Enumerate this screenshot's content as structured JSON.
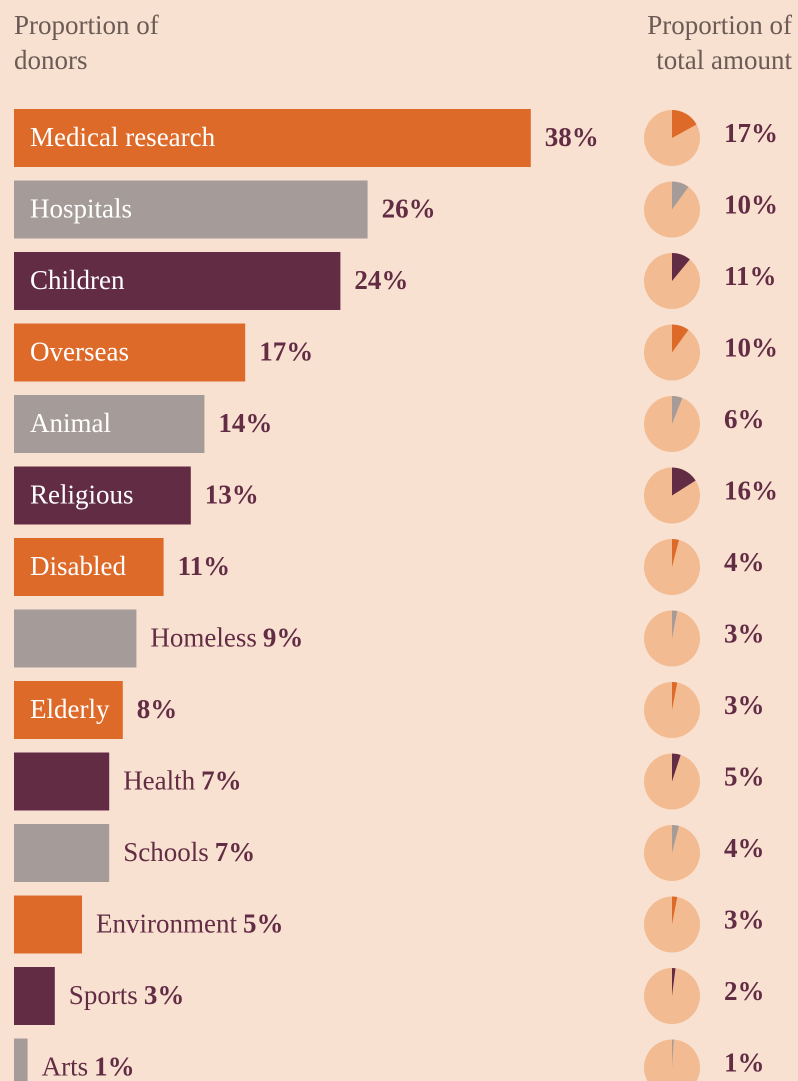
{
  "chart_data": {
    "type": "bar",
    "categories": [
      "Medical research",
      "Hospitals",
      "Children",
      "Overseas",
      "Animal",
      "Religious",
      "Disabled",
      "Homeless",
      "Elderly",
      "Health",
      "Schools",
      "Environment",
      "Sports",
      "Arts"
    ],
    "colors": [
      "#de6a29",
      "#a59c99",
      "#632c45",
      "#de6a29",
      "#a59c99",
      "#632c45",
      "#de6a29",
      "#a59c99",
      "#de6a29",
      "#632c45",
      "#a59c99",
      "#de6a29",
      "#632c45",
      "#a59c99"
    ],
    "series": [
      {
        "name": "Proportion of donors",
        "type": "bar",
        "values": [
          38,
          26,
          24,
          17,
          14,
          13,
          11,
          9,
          8,
          7,
          7,
          5,
          3,
          1
        ],
        "value_labels": [
          "38%",
          "26%",
          "24%",
          "17%",
          "14%",
          "13%",
          "11%",
          "9%",
          "8%",
          "7%",
          "7%",
          "5%",
          "3%",
          "1%"
        ]
      },
      {
        "name": "Proportion of total amount",
        "type": "pie",
        "values": [
          17,
          10,
          11,
          10,
          6,
          16,
          4,
          3,
          3,
          5,
          4,
          3,
          2,
          1
        ],
        "value_labels": [
          "17%",
          "10%",
          "11%",
          "10%",
          "6%",
          "16%",
          "4%",
          "3%",
          "3%",
          "5%",
          "4%",
          "3%",
          "2%",
          "1%"
        ]
      }
    ]
  }
}
